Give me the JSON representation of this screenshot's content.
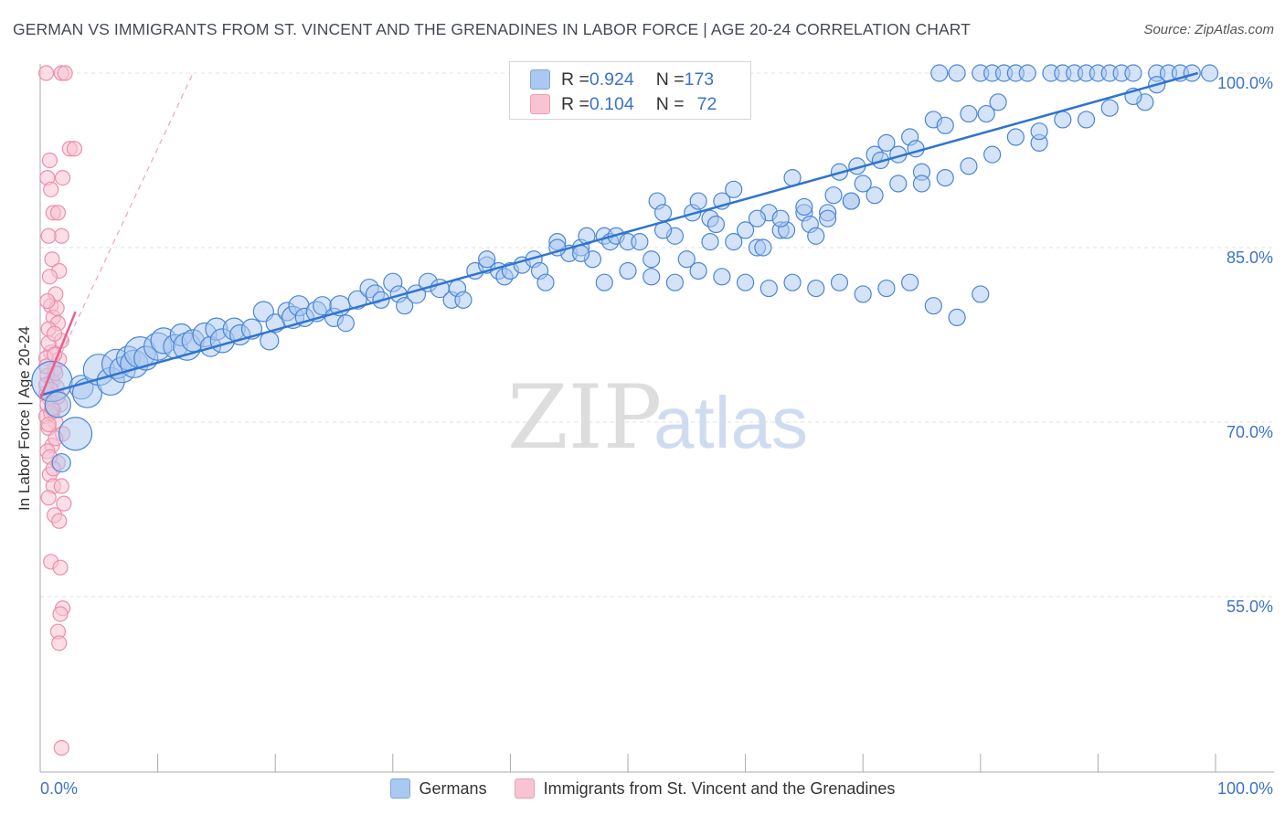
{
  "title": "GERMAN VS IMMIGRANTS FROM ST. VINCENT AND THE GRENADINES IN LABOR FORCE | AGE 20-24 CORRELATION CHART",
  "source": "Source: ZipAtlas.com",
  "colors": {
    "blue": "#4a86d6",
    "blue_fill": "#aac8f0",
    "blue_line": "#2f74d0",
    "pink": "#ee8eac",
    "pink_fill": "#f8c3d2",
    "pink_line": "#e8608c",
    "tick_label": "#3d73c7"
  },
  "legend": {
    "rows": [
      {
        "r_label": "R = ",
        "r_value": "0.924",
        "n_label": "N = ",
        "n_value": "173"
      },
      {
        "r_label": "R = ",
        "r_value": "0.104",
        "n_label": "N = ",
        "n_value": "72"
      }
    ],
    "bottom": [
      "Germans",
      "Immigrants from St. Vincent and the Grenadines"
    ]
  },
  "watermark": {
    "zip": "ZIP",
    "atlas": "atlas"
  },
  "chart_data": {
    "type": "scatter",
    "title": "GERMAN VS IMMIGRANTS FROM ST. VINCENT AND THE GRENADINES IN LABOR FORCE | AGE 20-24 CORRELATION CHART",
    "xlabel": "",
    "ylabel": "In Labor Force | Age 20-24",
    "xlim": [
      0,
      100
    ],
    "ylim": [
      42,
      101
    ],
    "x_tick_labels": [
      "0.0%",
      "100.0%"
    ],
    "y_ticks": [
      55,
      70,
      85,
      100
    ],
    "y_tick_labels": [
      "55.0%",
      "70.0%",
      "85.0%",
      "100.0%"
    ],
    "grid": "horizontal dashed",
    "legend_position": "top-center",
    "series": [
      {
        "name": "Germans",
        "R": 0.924,
        "N": 173,
        "trend": {
          "x": [
            0,
            98.5
          ],
          "y": [
            72.3,
            100.0
          ]
        },
        "points": [
          [
            1.0,
            73.5,
            22
          ],
          [
            1.5,
            71.5,
            14
          ],
          [
            1.8,
            66.5,
            10
          ],
          [
            3,
            69,
            18
          ],
          [
            3.5,
            73,
            13
          ],
          [
            4,
            72.5,
            16
          ],
          [
            5,
            74.5,
            17
          ],
          [
            6,
            73.5,
            15
          ],
          [
            6.5,
            75,
            16
          ],
          [
            7,
            74.5,
            14
          ],
          [
            7.5,
            75.5,
            13
          ],
          [
            8,
            75,
            15
          ],
          [
            8.5,
            76,
            17
          ],
          [
            9,
            75.5,
            13
          ],
          [
            10,
            76.5,
            15
          ],
          [
            10.5,
            77,
            14
          ],
          [
            11.5,
            76.5,
            13
          ],
          [
            12,
            77.5,
            12
          ],
          [
            12.5,
            76.5,
            15
          ],
          [
            13,
            77,
            12
          ],
          [
            14,
            77.5,
            13
          ],
          [
            14.5,
            76.5,
            11
          ],
          [
            15,
            78,
            12
          ],
          [
            15.5,
            77,
            13
          ],
          [
            16.5,
            78,
            12
          ],
          [
            17,
            77.5,
            11
          ],
          [
            18,
            78,
            11
          ],
          [
            19,
            79.5,
            11
          ],
          [
            19.5,
            77,
            10
          ],
          [
            20,
            78.5,
            10
          ],
          [
            21,
            79.5,
            10
          ],
          [
            21.5,
            79,
            12
          ],
          [
            22,
            80,
            11
          ],
          [
            22.5,
            79,
            10
          ],
          [
            23.5,
            79.5,
            11
          ],
          [
            24,
            80,
            10
          ],
          [
            25,
            79,
            10
          ],
          [
            25.5,
            80,
            11
          ],
          [
            26,
            78.5,
            9
          ],
          [
            27,
            80.5,
            10
          ],
          [
            28,
            81.5,
            10
          ],
          [
            28.5,
            81,
            10
          ],
          [
            29,
            80.5,
            9
          ],
          [
            30,
            82,
            10
          ],
          [
            30.5,
            81,
            9
          ],
          [
            31,
            80,
            9
          ],
          [
            32,
            81,
            10
          ],
          [
            33,
            82,
            10
          ],
          [
            34,
            81.5,
            10
          ],
          [
            35,
            80.5,
            9
          ],
          [
            35.5,
            81.5,
            9
          ],
          [
            36,
            80.5,
            9
          ],
          [
            37,
            83,
            9
          ],
          [
            38,
            83.5,
            9
          ],
          [
            39,
            83,
            9
          ],
          [
            39.5,
            82.5,
            9
          ],
          [
            40,
            83,
            9
          ],
          [
            41,
            83.5,
            9
          ],
          [
            42,
            84,
            9
          ],
          [
            42.5,
            83,
            9
          ],
          [
            43,
            82,
            9
          ],
          [
            44,
            85.5,
            9
          ],
          [
            45,
            84.5,
            9
          ],
          [
            46,
            85,
            9
          ],
          [
            46.5,
            86,
            9
          ],
          [
            47,
            84,
            9
          ],
          [
            48,
            86,
            9
          ],
          [
            48.5,
            85.5,
            9
          ],
          [
            49,
            86,
            9
          ],
          [
            50,
            85.5,
            9
          ],
          [
            51,
            85.5,
            9
          ],
          [
            52,
            84,
            9
          ],
          [
            52.5,
            89,
            9
          ],
          [
            53,
            88,
            9
          ],
          [
            54,
            86,
            9
          ],
          [
            55,
            84,
            9
          ],
          [
            55.5,
            88,
            9
          ],
          [
            56,
            89,
            9
          ],
          [
            57,
            87.5,
            9
          ],
          [
            57.5,
            87,
            9
          ],
          [
            58,
            89,
            9
          ],
          [
            59,
            90,
            9
          ],
          [
            60,
            86.5,
            9
          ],
          [
            61,
            85,
            9
          ],
          [
            61.5,
            85,
            9
          ],
          [
            62,
            88,
            9
          ],
          [
            63,
            86.5,
            9
          ],
          [
            63.5,
            86.5,
            9
          ],
          [
            64,
            91,
            9
          ],
          [
            65,
            88,
            9
          ],
          [
            65.5,
            87,
            9
          ],
          [
            66,
            86,
            9
          ],
          [
            67,
            88,
            9
          ],
          [
            67.5,
            89.5,
            9
          ],
          [
            68,
            91.5,
            9
          ],
          [
            69,
            89,
            9
          ],
          [
            69.5,
            92,
            9
          ],
          [
            70,
            90.5,
            9
          ],
          [
            71,
            93,
            9
          ],
          [
            71.5,
            92.5,
            9
          ],
          [
            72,
            94,
            9
          ],
          [
            73,
            93,
            9
          ],
          [
            74,
            94.5,
            9
          ],
          [
            74.5,
            93.5,
            9
          ],
          [
            75,
            91.5,
            9
          ],
          [
            76,
            96,
            9
          ],
          [
            76.5,
            100,
            9
          ],
          [
            77,
            95.5,
            9
          ],
          [
            78,
            100,
            9
          ],
          [
            79,
            96.5,
            9
          ],
          [
            80,
            100,
            9
          ],
          [
            80.5,
            96.5,
            9
          ],
          [
            81,
            100,
            9
          ],
          [
            81.5,
            97.5,
            9
          ],
          [
            82,
            100,
            9
          ],
          [
            83,
            100,
            9
          ],
          [
            84,
            100,
            9
          ],
          [
            85,
            94,
            9
          ],
          [
            86,
            100,
            9
          ],
          [
            87,
            100,
            9
          ],
          [
            88,
            100,
            9
          ],
          [
            89,
            100,
            9
          ],
          [
            90,
            100,
            9
          ],
          [
            91,
            100,
            9
          ],
          [
            92,
            100,
            9
          ],
          [
            93,
            100,
            9
          ],
          [
            94,
            97.5,
            9
          ],
          [
            95,
            100,
            9
          ],
          [
            96,
            100,
            9
          ],
          [
            97,
            100,
            9
          ],
          [
            98,
            100,
            9
          ],
          [
            99.5,
            100,
            9
          ],
          [
            50,
            83,
            9
          ],
          [
            48,
            82,
            9
          ],
          [
            52,
            82.5,
            9
          ],
          [
            54,
            82,
            9
          ],
          [
            56,
            83,
            9
          ],
          [
            58,
            82.5,
            9
          ],
          [
            60,
            82,
            9
          ],
          [
            62,
            81.5,
            9
          ],
          [
            64,
            82,
            9
          ],
          [
            66,
            81.5,
            9
          ],
          [
            68,
            82,
            9
          ],
          [
            70,
            81,
            9
          ],
          [
            72,
            81.5,
            9
          ],
          [
            74,
            82,
            9
          ],
          [
            76,
            80,
            9
          ],
          [
            78,
            79,
            9
          ],
          [
            80,
            81,
            9
          ],
          [
            38,
            84,
            9
          ],
          [
            44,
            85,
            9
          ],
          [
            46,
            84.5,
            9
          ],
          [
            53,
            86.5,
            9
          ],
          [
            57,
            85.5,
            9
          ],
          [
            59,
            85.5,
            9
          ],
          [
            61,
            87.5,
            9
          ],
          [
            63,
            87.5,
            9
          ],
          [
            65,
            88.5,
            9
          ],
          [
            67,
            87.5,
            9
          ],
          [
            69,
            89,
            9
          ],
          [
            71,
            89.5,
            9
          ],
          [
            73,
            90.5,
            9
          ],
          [
            75,
            90.5,
            9
          ],
          [
            77,
            91,
            9
          ],
          [
            79,
            92,
            9
          ],
          [
            81,
            93,
            9
          ],
          [
            83,
            94.5,
            9
          ],
          [
            85,
            95,
            9
          ],
          [
            87,
            96,
            9
          ],
          [
            89,
            96,
            9
          ],
          [
            91,
            97,
            9
          ],
          [
            93,
            98,
            9
          ],
          [
            95,
            99,
            9
          ]
        ]
      },
      {
        "name": "Immigrants from St. Vincent and the Grenadines",
        "R": 0.104,
        "N": 72,
        "trend": {
          "x": [
            0,
            3
          ],
          "y": [
            72.0,
            79.5
          ]
        },
        "trend_dashed": {
          "x": [
            0,
            13
          ],
          "y": [
            72.0,
            100.0
          ]
        },
        "points": [
          [
            0.2,
            100,
            8
          ],
          [
            1.5,
            100,
            8
          ],
          [
            1.8,
            100,
            8
          ],
          [
            2.2,
            93.5,
            8
          ],
          [
            2.6,
            93.5,
            8
          ],
          [
            0.5,
            92.5,
            8
          ],
          [
            1.6,
            91,
            8
          ],
          [
            0.3,
            91,
            8
          ],
          [
            0.6,
            90,
            8
          ],
          [
            0.8,
            88,
            8
          ],
          [
            1.2,
            88,
            8
          ],
          [
            1.5,
            86,
            8
          ],
          [
            0.4,
            86,
            8
          ],
          [
            0.7,
            84,
            8
          ],
          [
            1.3,
            83,
            8
          ],
          [
            0.5,
            82.5,
            8
          ],
          [
            1.0,
            81,
            8
          ],
          [
            0.6,
            80,
            8
          ],
          [
            0.8,
            79,
            8
          ],
          [
            1.2,
            78.5,
            8
          ],
          [
            0.4,
            78,
            8
          ],
          [
            1.5,
            77,
            8
          ],
          [
            0.6,
            76,
            8
          ],
          [
            0.2,
            75.5,
            8
          ],
          [
            0.9,
            74.5,
            8
          ],
          [
            0.3,
            74,
            8
          ],
          [
            0.7,
            73.5,
            8
          ],
          [
            1.1,
            73,
            8
          ],
          [
            0.2,
            72.5,
            8
          ],
          [
            0.5,
            72,
            8
          ],
          [
            1.4,
            71.5,
            8
          ],
          [
            0.8,
            71,
            8
          ],
          [
            0.2,
            70.5,
            8
          ],
          [
            1.0,
            70,
            8
          ],
          [
            0.4,
            69.5,
            8
          ],
          [
            1.6,
            69,
            8
          ],
          [
            0.7,
            68,
            8
          ],
          [
            0.3,
            67.5,
            8
          ],
          [
            1.2,
            66.5,
            8
          ],
          [
            0.5,
            65.5,
            8
          ],
          [
            0.8,
            64.5,
            8
          ],
          [
            1.5,
            64.5,
            8
          ],
          [
            0.4,
            63.5,
            8
          ],
          [
            1.7,
            63,
            8
          ],
          [
            0.9,
            62,
            8
          ],
          [
            1.3,
            61.5,
            8
          ],
          [
            0.6,
            58,
            8
          ],
          [
            1.4,
            57.5,
            8
          ],
          [
            1.6,
            54,
            8
          ],
          [
            1.4,
            53.5,
            8
          ],
          [
            1.2,
            52,
            8
          ],
          [
            1.3,
            51,
            8
          ],
          [
            1.5,
            42,
            8
          ],
          [
            0.3,
            71.5,
            8
          ],
          [
            0.6,
            70.8,
            8
          ],
          [
            0.2,
            73.2,
            8
          ],
          [
            1.0,
            74.2,
            8
          ],
          [
            0.4,
            76.8,
            8
          ],
          [
            0.9,
            77.6,
            8
          ],
          [
            1.1,
            79.8,
            8
          ],
          [
            0.3,
            80.4,
            8
          ],
          [
            0.5,
            67,
            8
          ],
          [
            0.8,
            66,
            8
          ],
          [
            1.0,
            68.6,
            8
          ],
          [
            0.2,
            74.8,
            8
          ],
          [
            0.6,
            72.8,
            8
          ],
          [
            1.3,
            75.4,
            8
          ],
          [
            0.4,
            69.8,
            8
          ],
          [
            0.7,
            71.2,
            8
          ],
          [
            1.2,
            72.2,
            8
          ],
          [
            0.9,
            75.8,
            8
          ]
        ]
      }
    ]
  }
}
